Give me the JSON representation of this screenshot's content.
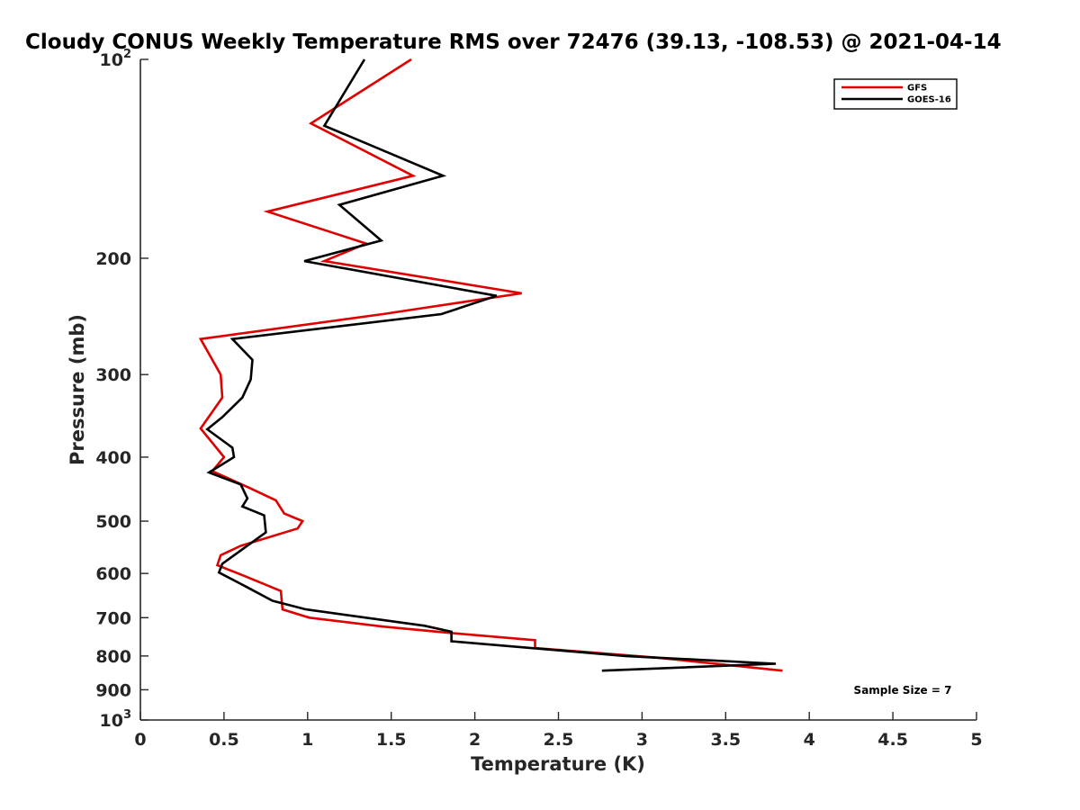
{
  "chart_data": {
    "type": "line",
    "title": "Cloudy CONUS Weekly Temperature RMS over 72476 (39.13, -108.53) @ 2021-04-14",
    "xlabel": "Temperature (K)",
    "ylabel": "Pressure (mb)",
    "xlim": [
      0,
      5
    ],
    "ylim": [
      100,
      1000
    ],
    "y_scale": "log",
    "y_reversed": true,
    "x_ticks": [
      "0",
      "0.5",
      "1",
      "1.5",
      "2",
      "2.5",
      "3",
      "3.5",
      "4",
      "4.5",
      "5"
    ],
    "y_ticks": [
      {
        "value": 100,
        "base": "10",
        "exp": "2"
      },
      {
        "value": 200,
        "label": "200"
      },
      {
        "value": 300,
        "label": "300"
      },
      {
        "value": 400,
        "label": "400"
      },
      {
        "value": 500,
        "label": "500"
      },
      {
        "value": 600,
        "label": "600"
      },
      {
        "value": 700,
        "label": "700"
      },
      {
        "value": 800,
        "label": "800"
      },
      {
        "value": 900,
        "label": "900"
      },
      {
        "value": 1000,
        "base": "10",
        "exp": "3"
      }
    ],
    "grid": false,
    "legend_position": "top-right",
    "annotation": "Sample Size = 7",
    "series": [
      {
        "name": "GFS",
        "color": "#e00000",
        "points": [
          [
            1.62,
            100
          ],
          [
            1.02,
            125
          ],
          [
            1.63,
            150
          ],
          [
            0.76,
            170
          ],
          [
            1.35,
            190
          ],
          [
            1.1,
            202
          ],
          [
            2.28,
            226
          ],
          [
            1.45,
            243
          ],
          [
            0.36,
            265
          ],
          [
            0.48,
            300
          ],
          [
            0.49,
            325
          ],
          [
            0.36,
            362
          ],
          [
            0.5,
            400
          ],
          [
            0.43,
            420
          ],
          [
            0.65,
            445
          ],
          [
            0.81,
            465
          ],
          [
            0.86,
            487
          ],
          [
            0.97,
            500
          ],
          [
            0.94,
            513
          ],
          [
            0.6,
            545
          ],
          [
            0.48,
            563
          ],
          [
            0.46,
            583
          ],
          [
            0.62,
            605
          ],
          [
            0.84,
            638
          ],
          [
            0.85,
            680
          ],
          [
            1.01,
            700
          ],
          [
            1.45,
            722
          ],
          [
            1.85,
            738
          ],
          [
            2.36,
            757
          ],
          [
            2.36,
            778
          ],
          [
            3.1,
            805
          ],
          [
            3.84,
            842
          ]
        ]
      },
      {
        "name": "GOES-16",
        "color": "#000000",
        "points": [
          [
            1.34,
            100
          ],
          [
            1.1,
            126
          ],
          [
            1.81,
            150
          ],
          [
            1.19,
            166
          ],
          [
            1.44,
            188
          ],
          [
            0.98,
            202
          ],
          [
            2.13,
            228
          ],
          [
            1.8,
            243
          ],
          [
            0.55,
            265
          ],
          [
            0.67,
            285
          ],
          [
            0.66,
            305
          ],
          [
            0.61,
            325
          ],
          [
            0.49,
            348
          ],
          [
            0.4,
            363
          ],
          [
            0.55,
            387
          ],
          [
            0.56,
            400
          ],
          [
            0.41,
            422
          ],
          [
            0.6,
            440
          ],
          [
            0.64,
            462
          ],
          [
            0.61,
            475
          ],
          [
            0.74,
            490
          ],
          [
            0.75,
            520
          ],
          [
            0.49,
            580
          ],
          [
            0.47,
            598
          ],
          [
            0.63,
            628
          ],
          [
            0.79,
            660
          ],
          [
            0.99,
            680
          ],
          [
            1.7,
            720
          ],
          [
            1.86,
            735
          ],
          [
            1.86,
            760
          ],
          [
            2.9,
            800
          ],
          [
            3.8,
            822
          ],
          [
            2.76,
            842
          ]
        ]
      }
    ]
  }
}
